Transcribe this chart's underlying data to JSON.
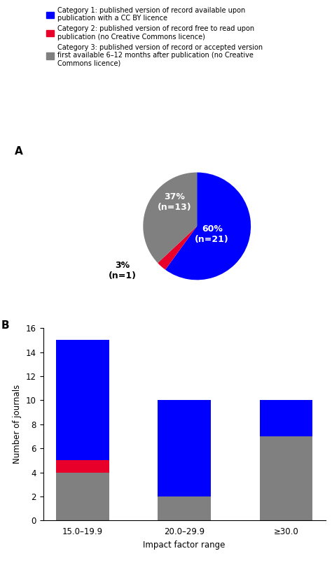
{
  "legend": [
    {
      "label": "Category 1: published version of record available upon\npublication with a CC BY licence",
      "color": "#0000FF"
    },
    {
      "label": "Category 2: published version of record free to read upon\npublication (no Creative Commons licence)",
      "color": "#E8002A"
    },
    {
      "label": "Category 3: published version of record or accepted version\nfirst available 6–12 months after publication (no Creative\nCommons licence)",
      "color": "#808080"
    }
  ],
  "pie": {
    "values": [
      60,
      3,
      37
    ],
    "colors": [
      "#0000FF",
      "#E8002A",
      "#808080"
    ],
    "startangle": 90,
    "label_cat1": "60%\n(n=21)",
    "label_cat2": "3%\n(n=1)",
    "label_cat3": "37%\n(n=13)"
  },
  "bar": {
    "categories": [
      "15.0–19.9",
      "20.0–29.9",
      "≥30.0"
    ],
    "cat1": [
      10,
      8,
      3
    ],
    "cat2": [
      1,
      0,
      0
    ],
    "cat3": [
      4,
      2,
      7
    ],
    "colors": [
      "#0000FF",
      "#E8002A",
      "#808080"
    ],
    "ylabel": "Number of journals",
    "xlabel": "Impact factor range",
    "ylim": [
      0,
      16
    ],
    "yticks": [
      0,
      2,
      4,
      6,
      8,
      10,
      12,
      14,
      16
    ]
  },
  "panel_A_label": "A",
  "panel_B_label": "B",
  "background_color": "#FFFFFF"
}
